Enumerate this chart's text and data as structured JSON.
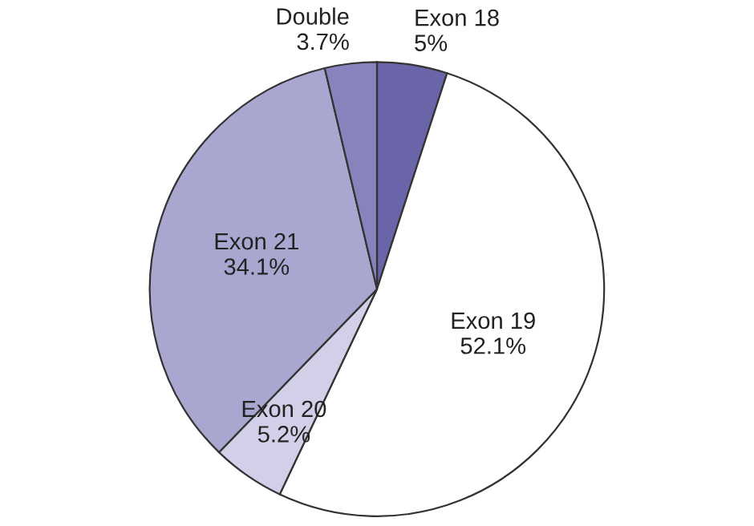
{
  "chart_data": {
    "type": "pie",
    "categories": [
      "Exon 18",
      "Exon 19",
      "Exon 20",
      "Exon 21",
      "Double"
    ],
    "values": [
      5,
      52.1,
      5.2,
      34.1,
      3.7
    ],
    "value_labels": [
      "5%",
      "52.1%",
      "5.2%",
      "34.1%",
      "3.7%"
    ],
    "colors": [
      "#6a64a8",
      "#ffffff",
      "#d2d0e8",
      "#a9a6d0",
      "#8883bd"
    ]
  }
}
